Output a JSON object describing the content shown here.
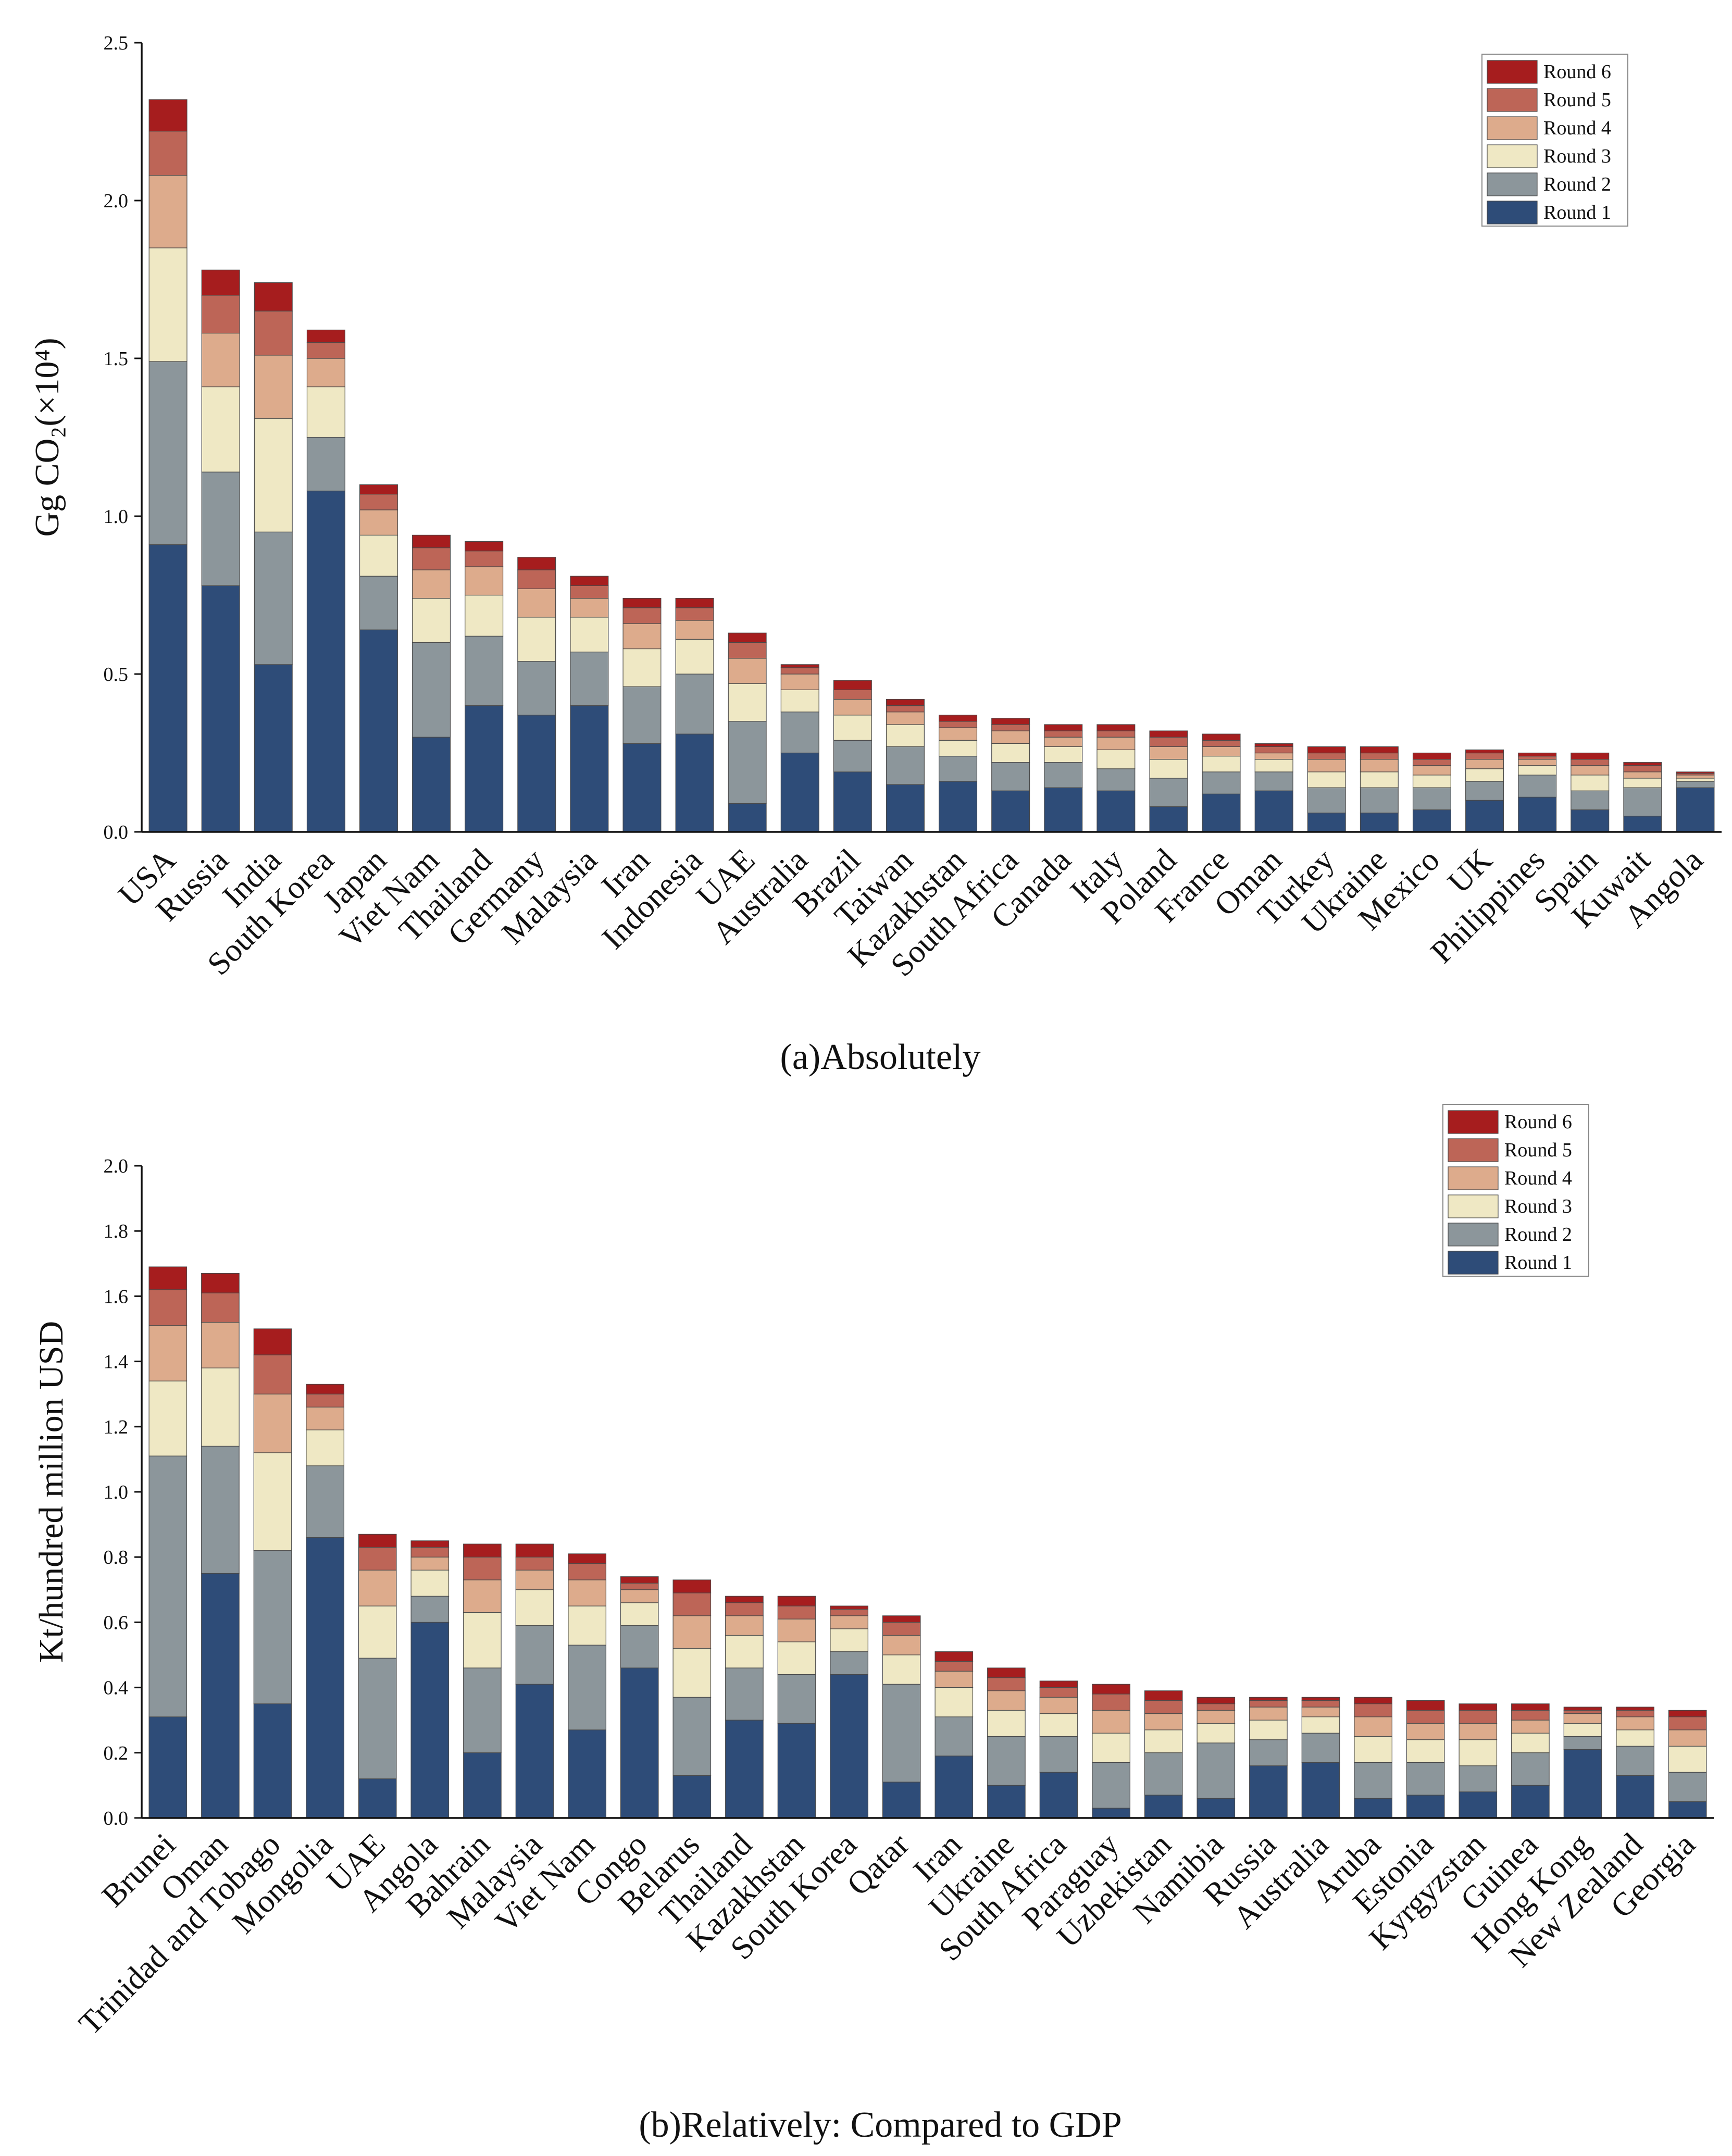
{
  "chart_data": [
    {
      "type": "bar",
      "stacked": true,
      "title": "",
      "caption": "(a)Absolutely",
      "ylabel": "Gg CO₂(×10⁴)",
      "xlabel": "",
      "ylim": [
        0,
        2.5
      ],
      "yticks": [
        "0.0",
        "0.5",
        "1.0",
        "1.5",
        "2.0",
        "2.5"
      ],
      "legend": [
        "Round 6",
        "Round 5",
        "Round 4",
        "Round 3",
        "Round 2",
        "Round 1"
      ],
      "legend_position": "top-right",
      "categories": [
        "USA",
        "Russia",
        "India",
        "South Korea",
        "Japan",
        "Viet Nam",
        "Thailand",
        "Germany",
        "Malaysia",
        "Iran",
        "Indonesia",
        "UAE",
        "Australia",
        "Brazil",
        "Taiwan",
        "Kazakhstan",
        "South Africa",
        "Canada",
        "Italy",
        "Poland",
        "France",
        "Oman",
        "Turkey",
        "Ukraine",
        "Mexico",
        "UK",
        "Philippines",
        "Spain",
        "Kuwait",
        "Angola"
      ],
      "series": [
        {
          "name": "Round 1",
          "values": [
            0.91,
            0.78,
            0.53,
            1.08,
            0.64,
            0.3,
            0.4,
            0.37,
            0.4,
            0.28,
            0.31,
            0.09,
            0.25,
            0.19,
            0.15,
            0.16,
            0.13,
            0.14,
            0.13,
            0.08,
            0.12,
            0.13,
            0.06,
            0.06,
            0.07,
            0.1,
            0.11,
            0.07,
            0.05,
            0.14
          ]
        },
        {
          "name": "Round 2",
          "values": [
            0.58,
            0.36,
            0.42,
            0.17,
            0.17,
            0.3,
            0.22,
            0.17,
            0.17,
            0.18,
            0.19,
            0.26,
            0.13,
            0.1,
            0.12,
            0.08,
            0.09,
            0.08,
            0.07,
            0.09,
            0.07,
            0.06,
            0.08,
            0.08,
            0.07,
            0.06,
            0.07,
            0.06,
            0.09,
            0.02
          ]
        },
        {
          "name": "Round 3",
          "values": [
            0.36,
            0.27,
            0.36,
            0.16,
            0.13,
            0.14,
            0.13,
            0.14,
            0.11,
            0.12,
            0.11,
            0.12,
            0.07,
            0.08,
            0.07,
            0.05,
            0.06,
            0.05,
            0.06,
            0.06,
            0.05,
            0.04,
            0.05,
            0.05,
            0.04,
            0.04,
            0.03,
            0.05,
            0.03,
            0.01
          ]
        },
        {
          "name": "Round 4",
          "values": [
            0.23,
            0.17,
            0.2,
            0.09,
            0.08,
            0.09,
            0.09,
            0.09,
            0.06,
            0.08,
            0.06,
            0.08,
            0.05,
            0.05,
            0.04,
            0.04,
            0.04,
            0.03,
            0.04,
            0.04,
            0.03,
            0.02,
            0.04,
            0.04,
            0.03,
            0.03,
            0.02,
            0.03,
            0.02,
            0.01
          ]
        },
        {
          "name": "Round 5",
          "values": [
            0.14,
            0.12,
            0.14,
            0.05,
            0.05,
            0.07,
            0.05,
            0.06,
            0.04,
            0.05,
            0.04,
            0.05,
            0.02,
            0.03,
            0.02,
            0.02,
            0.02,
            0.02,
            0.02,
            0.03,
            0.02,
            0.02,
            0.02,
            0.02,
            0.02,
            0.02,
            0.01,
            0.02,
            0.02,
            0.005
          ]
        },
        {
          "name": "Round 6",
          "values": [
            0.1,
            0.08,
            0.09,
            0.04,
            0.03,
            0.04,
            0.03,
            0.04,
            0.03,
            0.03,
            0.03,
            0.03,
            0.01,
            0.03,
            0.02,
            0.02,
            0.02,
            0.02,
            0.02,
            0.02,
            0.02,
            0.01,
            0.02,
            0.02,
            0.02,
            0.01,
            0.01,
            0.02,
            0.01,
            0.005
          ]
        }
      ]
    },
    {
      "type": "bar",
      "stacked": true,
      "title": "",
      "caption": "(b)Relatively: Compared to GDP",
      "ylabel": "Kt/hundred million USD",
      "xlabel": "",
      "ylim": [
        0,
        2.0
      ],
      "yticks": [
        "0.0",
        "0.2",
        "0.4",
        "0.6",
        "0.8",
        "1.0",
        "1.2",
        "1.4",
        "1.6",
        "1.8",
        "2.0"
      ],
      "legend": [
        "Round 6",
        "Round 5",
        "Round 4",
        "Round 3",
        "Round 2",
        "Round 1"
      ],
      "legend_position": "top-right",
      "categories": [
        "Brunei",
        "Oman",
        "Trinidad and Tobago",
        "Mongolia",
        "UAE",
        "Angola",
        "Bahrain",
        "Malaysia",
        "Viet Nam",
        "Congo",
        "Belarus",
        "Thailand",
        "Kazakhstan",
        "South Korea",
        "Qatar",
        "Iran",
        "Ukraine",
        "South Africa",
        "Paraguay",
        "Uzbekistan",
        "Namibia",
        "Russia",
        "Australia",
        "Aruba",
        "Estonia",
        "Kyrgyzstan",
        "Guinea",
        "Hong Kong",
        "New Zealand",
        "Georgia"
      ],
      "series": [
        {
          "name": "Round 1",
          "values": [
            0.31,
            0.75,
            0.35,
            0.86,
            0.12,
            0.6,
            0.2,
            0.41,
            0.27,
            0.46,
            0.13,
            0.3,
            0.29,
            0.44,
            0.11,
            0.19,
            0.1,
            0.14,
            0.03,
            0.07,
            0.06,
            0.16,
            0.17,
            0.06,
            0.07,
            0.08,
            0.1,
            0.21,
            0.13,
            0.05
          ]
        },
        {
          "name": "Round 2",
          "values": [
            0.8,
            0.39,
            0.47,
            0.22,
            0.37,
            0.08,
            0.26,
            0.18,
            0.26,
            0.13,
            0.24,
            0.16,
            0.15,
            0.07,
            0.3,
            0.12,
            0.15,
            0.11,
            0.14,
            0.13,
            0.17,
            0.08,
            0.09,
            0.11,
            0.1,
            0.08,
            0.1,
            0.04,
            0.09,
            0.09
          ]
        },
        {
          "name": "Round 3",
          "values": [
            0.23,
            0.24,
            0.3,
            0.11,
            0.16,
            0.08,
            0.17,
            0.11,
            0.12,
            0.07,
            0.15,
            0.1,
            0.1,
            0.07,
            0.09,
            0.09,
            0.08,
            0.07,
            0.09,
            0.07,
            0.06,
            0.06,
            0.05,
            0.08,
            0.07,
            0.08,
            0.06,
            0.04,
            0.05,
            0.08
          ]
        },
        {
          "name": "Round 4",
          "values": [
            0.17,
            0.14,
            0.18,
            0.07,
            0.11,
            0.04,
            0.1,
            0.06,
            0.08,
            0.04,
            0.1,
            0.06,
            0.07,
            0.04,
            0.06,
            0.05,
            0.06,
            0.05,
            0.07,
            0.05,
            0.04,
            0.04,
            0.03,
            0.06,
            0.05,
            0.05,
            0.04,
            0.03,
            0.04,
            0.05
          ]
        },
        {
          "name": "Round 5",
          "values": [
            0.11,
            0.09,
            0.12,
            0.04,
            0.07,
            0.03,
            0.07,
            0.04,
            0.05,
            0.02,
            0.07,
            0.04,
            0.04,
            0.02,
            0.04,
            0.03,
            0.04,
            0.03,
            0.05,
            0.04,
            0.02,
            0.02,
            0.02,
            0.04,
            0.04,
            0.04,
            0.03,
            0.01,
            0.02,
            0.04
          ]
        },
        {
          "name": "Round 6",
          "values": [
            0.07,
            0.06,
            0.08,
            0.03,
            0.04,
            0.02,
            0.04,
            0.04,
            0.03,
            0.02,
            0.04,
            0.02,
            0.03,
            0.01,
            0.02,
            0.03,
            0.03,
            0.02,
            0.03,
            0.03,
            0.02,
            0.01,
            0.01,
            0.02,
            0.03,
            0.02,
            0.02,
            0.01,
            0.01,
            0.02
          ]
        }
      ]
    }
  ],
  "colors": {
    "Round 1": "#2e4c78",
    "Round 2": "#8c969b",
    "Round 3": "#efe8c4",
    "Round 4": "#ddab8c",
    "Round 5": "#bd6557",
    "Round 6": "#a61d1e"
  }
}
